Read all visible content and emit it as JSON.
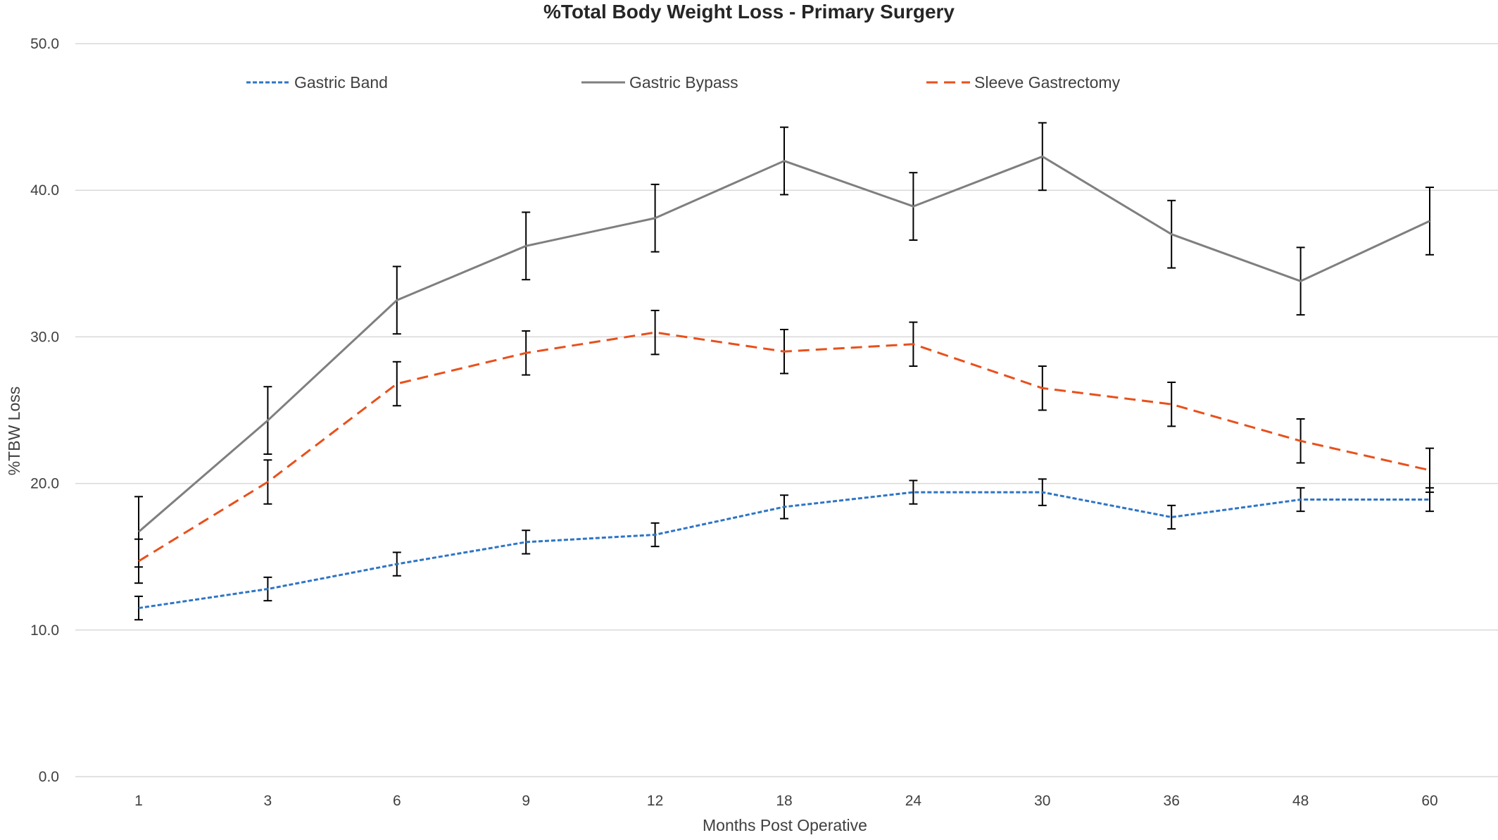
{
  "chart_data": {
    "type": "line",
    "title": "%Total Body Weight Loss - Primary Surgery",
    "xlabel": "Months Post Operative",
    "ylabel": "%TBW Loss",
    "categories": [
      "1",
      "3",
      "6",
      "9",
      "12",
      "18",
      "24",
      "30",
      "36",
      "48",
      "60"
    ],
    "ylim": [
      0,
      50
    ],
    "yticks": [
      "0.0",
      "10.0",
      "20.0",
      "30.0",
      "40.0",
      "50.0"
    ],
    "grid": true,
    "legend_position": "top",
    "series": [
      {
        "name": "Gastric Band",
        "color": "#2E75C5",
        "style": "dotted",
        "values": [
          11.5,
          12.8,
          14.5,
          16.0,
          16.5,
          18.4,
          19.4,
          19.4,
          17.7,
          18.9,
          18.9
        ],
        "error": [
          0.8,
          0.8,
          0.8,
          0.8,
          0.8,
          0.8,
          0.8,
          0.9,
          0.8,
          0.8,
          0.8
        ]
      },
      {
        "name": "Gastric Bypass",
        "color": "#7F7F7F",
        "style": "solid",
        "values": [
          16.7,
          24.3,
          32.5,
          36.2,
          38.1,
          42.0,
          38.9,
          42.3,
          37.0,
          33.8,
          37.9
        ],
        "error": [
          2.4,
          2.3,
          2.3,
          2.3,
          2.3,
          2.3,
          2.3,
          2.3,
          2.3,
          2.3,
          2.3
        ]
      },
      {
        "name": "Sleeve Gastrectomy",
        "color": "#E8501C",
        "style": "dashed",
        "values": [
          14.7,
          20.1,
          26.8,
          28.9,
          30.3,
          29.0,
          29.5,
          26.5,
          25.4,
          22.9,
          20.9
        ],
        "error": [
          1.5,
          1.5,
          1.5,
          1.5,
          1.5,
          1.5,
          1.5,
          1.5,
          1.5,
          1.5,
          1.5
        ]
      }
    ]
  }
}
